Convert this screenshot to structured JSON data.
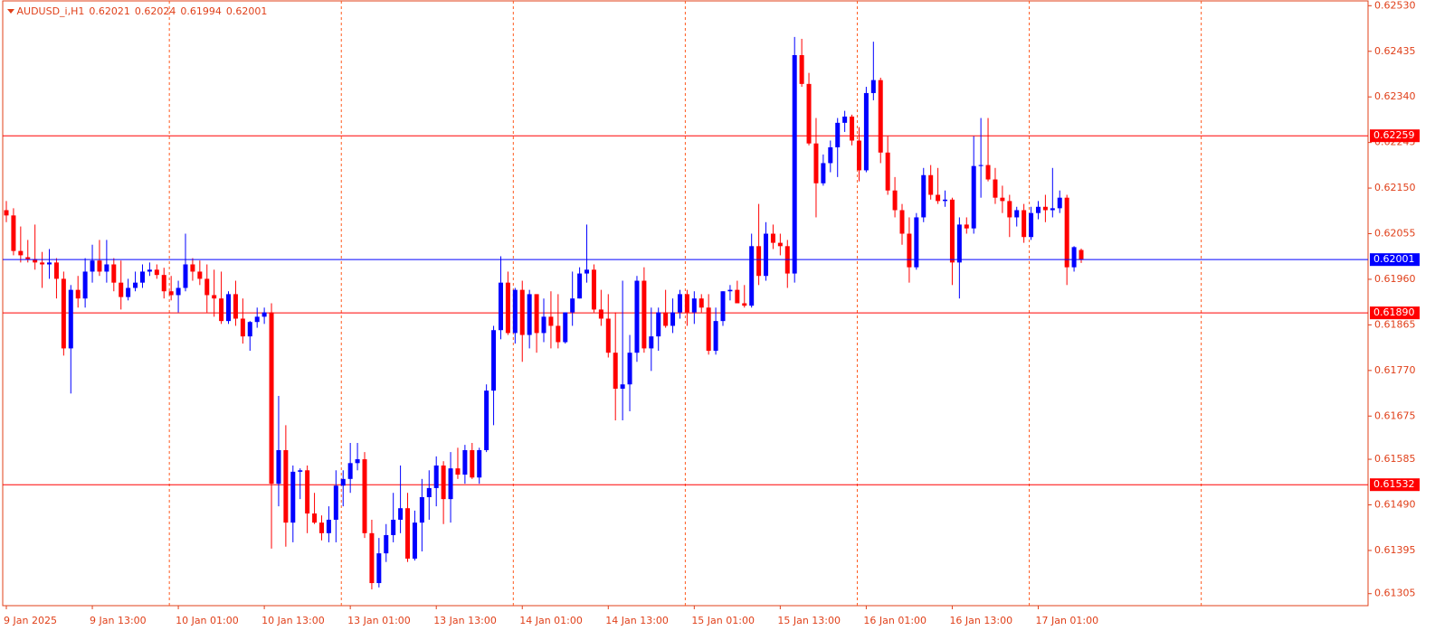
{
  "chart_data": {
    "type": "candlestick",
    "title": "AUDUSD_i,H1",
    "up_color": "#0000ff",
    "down_color": "#ff0000",
    "ylim": [
      0.6128,
      0.6254
    ],
    "yticks": [
      {
        "value": 0.6253,
        "label": "0.62530"
      },
      0.62435,
      {
        "value": 0.6234,
        "label": "0.62340"
      },
      0.62245,
      {
        "value": 0.6215,
        "label": "0.62150"
      },
      0.62055,
      {
        "value": 0.6196,
        "label": "0.61960"
      },
      0.61865,
      {
        "value": 0.6177,
        "label": "0.61770"
      },
      0.61675,
      0.61585,
      {
        "value": 0.6149,
        "label": "0.61490"
      },
      0.61395,
      0.61305
    ],
    "levels": [
      {
        "value": 0.62259,
        "color": "#ff0000"
      },
      {
        "value": 0.6189,
        "label": "0.61890",
        "color": "#ff0000"
      },
      {
        "value": 0.61532,
        "color": "#ff0000"
      }
    ],
    "categories": [
      "9 Jan 2025",
      null,
      null,
      null,
      null,
      null,
      null,
      null,
      null,
      null,
      null,
      null,
      "9 Jan 13:00",
      null,
      null,
      null,
      null,
      null,
      null,
      null,
      null,
      null,
      null,
      null,
      "10 Jan 01:00",
      null,
      null,
      null,
      null,
      null,
      null,
      null,
      null,
      null,
      null,
      null,
      "10 Jan 13:00",
      null,
      null,
      null,
      null,
      null,
      null,
      null,
      null,
      null,
      null,
      null,
      "13 Jan 01:00",
      null,
      null,
      null,
      null,
      null,
      null,
      null,
      null,
      null,
      null,
      null,
      "13 Jan 13:00",
      null,
      null,
      null,
      null,
      null,
      null,
      null,
      null,
      null,
      null,
      null,
      "14 Jan 01:00",
      null,
      null,
      null,
      null,
      null,
      null,
      null,
      null,
      null,
      null,
      null,
      "14 Jan 13:00",
      null,
      null,
      null,
      null,
      null,
      null,
      null,
      null,
      null,
      null,
      null,
      "15 Jan 01:00",
      null,
      null,
      null,
      null,
      null,
      null,
      null,
      null,
      null,
      null,
      null,
      "15 Jan 13:00",
      null,
      null,
      null,
      null,
      null,
      null,
      null,
      null,
      null,
      null,
      null,
      "16 Jan 01:00",
      null,
      null,
      null,
      null,
      null,
      null,
      null,
      null,
      null,
      null,
      null,
      "16 Jan 13:00",
      null,
      null,
      null,
      null,
      null,
      null,
      null,
      null,
      null,
      null,
      null,
      "17 Jan 01:00",
      null,
      null,
      null,
      null,
      null,
      null
    ],
    "open": [
      0.62104,
      0.62093,
      0.62019,
      0.62006,
      0.62002,
      0.61995,
      0.61991,
      0.61995,
      0.61961,
      0.61816,
      0.61938,
      0.6192,
      0.61976,
      0.61999,
      0.61976,
      0.61991,
      0.61953,
      0.61923,
      0.61942,
      0.61953,
      0.61976,
      0.6198,
      0.61969,
      0.61935,
      0.61927,
      0.61942,
      0.61991,
      0.61976,
      0.61961,
      0.61927,
      0.6192,
      0.61873,
      0.61929,
      0.61878,
      0.61841,
      0.61871,
      0.61882,
      0.61891,
      0.61534,
      0.61604,
      0.61453,
      0.61559,
      0.61562,
      0.61472,
      0.61453,
      0.61431,
      0.61459,
      0.6153,
      0.61544,
      0.61577,
      0.61585,
      0.61431,
      0.61327,
      0.61389,
      0.61427,
      0.61459,
      0.61483,
      0.61378,
      0.61453,
      0.61506,
      0.61525,
      0.61572,
      0.61502,
      0.61566,
      0.61553,
      0.61604,
      0.61547,
      0.61604,
      0.61728,
      0.61854,
      0.61953,
      0.61848,
      0.61938,
      0.61844,
      0.61929,
      0.61848,
      0.61882,
      0.61863,
      0.61829,
      0.61891,
      0.6192,
      0.61972,
      0.6198,
      0.61897,
      0.61878,
      0.61807,
      0.61732,
      0.61741,
      0.61807,
      0.61957,
      0.61816,
      0.61841,
      0.61891,
      0.61863,
      0.61891,
      0.61929,
      0.61891,
      0.6192,
      0.61901,
      0.61811,
      0.61873,
      0.61935,
      0.61938,
      0.6191,
      0.61905,
      0.62029,
      0.61967,
      0.62055,
      0.62036,
      0.62029,
      0.61972,
      0.62427,
      0.62367,
      0.62243,
      0.6216,
      0.62202,
      0.62235,
      0.62286,
      0.62299,
      0.62249,
      0.62187,
      0.62348,
      0.62375,
      0.62224,
      0.62145,
      0.62104,
      0.62055,
      0.61985,
      0.62089,
      0.62177,
      0.62136,
      0.62123,
      0.62126,
      0.61995,
      0.62074,
      0.62066,
      0.62196,
      0.62198,
      0.62168,
      0.6213,
      0.62123,
      0.62089,
      0.62104,
      0.62048,
      0.62098,
      0.62111,
      0.62104,
      0.62108,
      0.6213,
      0.61985,
      0.62021
    ],
    "high": [
      0.62123,
      0.62108,
      0.6207,
      0.62042,
      0.62074,
      0.62017,
      0.62023,
      0.62004,
      0.61976,
      0.61948,
      0.61967,
      0.62004,
      0.62032,
      0.62042,
      0.62042,
      0.62004,
      0.61999,
      0.61961,
      0.61976,
      0.61991,
      0.61995,
      0.61991,
      0.61984,
      0.61967,
      0.61957,
      0.62055,
      0.62004,
      0.61999,
      0.61991,
      0.6198,
      0.61976,
      0.61935,
      0.61957,
      0.6192,
      0.61873,
      0.61901,
      0.61901,
      0.6191,
      0.61717,
      0.61656,
      0.61572,
      0.61566,
      0.61572,
      0.61515,
      0.61468,
      0.61487,
      0.61562,
      0.61562,
      0.61619,
      0.61619,
      0.616,
      0.61459,
      0.61421,
      0.6145,
      0.61515,
      0.61572,
      0.61515,
      0.61478,
      0.61544,
      0.61562,
      0.61591,
      0.61581,
      0.616,
      0.61609,
      0.61615,
      0.61619,
      0.61609,
      0.61741,
      0.61863,
      0.62008,
      0.61976,
      0.61942,
      0.61957,
      0.61938,
      0.61929,
      0.6192,
      0.61935,
      0.61929,
      0.61891,
      0.61976,
      0.61985,
      0.62074,
      0.61991,
      0.61938,
      0.61929,
      0.61891,
      0.61957,
      0.61844,
      0.61967,
      0.61985,
      0.61901,
      0.61901,
      0.61938,
      0.6192,
      0.61938,
      0.61938,
      0.61935,
      0.61929,
      0.61929,
      0.61901,
      0.61935,
      0.61948,
      0.61957,
      0.61948,
      0.62055,
      0.62117,
      0.62079,
      0.62074,
      0.62055,
      0.62042,
      0.62465,
      0.62461,
      0.6239,
      0.62296,
      0.6222,
      0.62249,
      0.62296,
      0.62311,
      0.62303,
      0.62277,
      0.62361,
      0.62455,
      0.6238,
      0.62258,
      0.62173,
      0.62117,
      0.62089,
      0.62098,
      0.62192,
      0.62198,
      0.62192,
      0.62145,
      0.6213,
      0.62089,
      0.62089,
      0.62258,
      0.62296,
      0.62296,
      0.62192,
      0.62155,
      0.62136,
      0.62111,
      0.62117,
      0.62111,
      0.62123,
      0.62136,
      0.62192,
      0.62145,
      0.62136,
      0.62029,
      0.62024
    ],
    "low": [
      0.62079,
      0.6201,
      0.61995,
      0.61995,
      0.6198,
      0.61942,
      0.61961,
      0.6192,
      0.61801,
      0.61722,
      0.61901,
      0.61901,
      0.61953,
      0.61967,
      0.61953,
      0.61935,
      0.61897,
      0.61916,
      0.61935,
      0.61942,
      0.61967,
      0.61961,
      0.6192,
      0.61916,
      0.61891,
      0.61935,
      0.61957,
      0.61948,
      0.61891,
      0.61882,
      0.61867,
      0.61867,
      0.61863,
      0.61826,
      0.61811,
      0.61859,
      0.61867,
      0.61399,
      0.61487,
      0.61403,
      0.61412,
      0.61502,
      0.61431,
      0.6145,
      0.61416,
      0.61412,
      0.61412,
      0.61487,
      0.61515,
      0.61562,
      0.61421,
      0.61314,
      0.61318,
      0.61371,
      0.61412,
      0.61431,
      0.61371,
      0.61374,
      0.61393,
      0.61459,
      0.61487,
      0.6145,
      0.61453,
      0.61544,
      0.61534,
      0.61544,
      0.61534,
      0.616,
      0.61656,
      0.61835,
      0.61844,
      0.61826,
      0.61788,
      0.61816,
      0.61807,
      0.61829,
      0.61816,
      0.61816,
      0.61826,
      0.61863,
      0.6192,
      0.61953,
      0.61891,
      0.61863,
      0.61797,
      0.61666,
      0.61666,
      0.61685,
      0.61788,
      0.61807,
      0.61769,
      0.61811,
      0.61859,
      0.61848,
      0.61878,
      0.61863,
      0.61867,
      0.61891,
      0.61803,
      0.61803,
      0.61863,
      0.61916,
      0.6191,
      0.61901,
      0.61901,
      0.61948,
      0.61957,
      0.62023,
      0.6201,
      0.61942,
      0.61953,
      0.62361,
      0.62239,
      0.62089,
      0.62155,
      0.62183,
      0.62173,
      0.62267,
      0.62239,
      0.62164,
      0.62183,
      0.62333,
      0.62202,
      0.62136,
      0.62089,
      0.62032,
      0.61953,
      0.6198,
      0.62079,
      0.62126,
      0.62117,
      0.62111,
      0.61948,
      0.6192,
      0.62055,
      0.62055,
      0.6213,
      0.62164,
      0.62117,
      0.62098,
      0.62048,
      0.6207,
      0.62036,
      0.62042,
      0.62085,
      0.62079,
      0.62089,
      0.62098,
      0.61948,
      0.61976,
      0.61994
    ],
    "close": [
      0.62093,
      0.62019,
      0.6201,
      0.62002,
      0.61995,
      0.61991,
      0.61995,
      0.61961,
      0.61816,
      0.61938,
      0.6192,
      0.61976,
      0.61999,
      0.61976,
      0.61991,
      0.61953,
      0.61923,
      0.61942,
      0.61953,
      0.61976,
      0.6198,
      0.61969,
      0.61935,
      0.61927,
      0.61942,
      0.61991,
      0.61976,
      0.61961,
      0.61927,
      0.6192,
      0.61873,
      0.61929,
      0.61878,
      0.61841,
      0.61871,
      0.61882,
      0.61891,
      0.61534,
      0.61604,
      0.61453,
      0.61559,
      0.61562,
      0.61472,
      0.61453,
      0.61431,
      0.61459,
      0.6153,
      0.61544,
      0.61577,
      0.61585,
      0.61431,
      0.61327,
      0.61389,
      0.61427,
      0.61459,
      0.61483,
      0.61378,
      0.61453,
      0.61506,
      0.61525,
      0.61572,
      0.61502,
      0.61566,
      0.61553,
      0.61604,
      0.61547,
      0.61604,
      0.61728,
      0.61854,
      0.61953,
      0.61848,
      0.61938,
      0.61844,
      0.61929,
      0.61848,
      0.61882,
      0.61863,
      0.61829,
      0.61891,
      0.6192,
      0.61972,
      0.6198,
      0.61897,
      0.61878,
      0.61807,
      0.61732,
      0.61741,
      0.61807,
      0.61957,
      0.61816,
      0.61841,
      0.61891,
      0.61863,
      0.61891,
      0.61929,
      0.61891,
      0.6192,
      0.61901,
      0.61811,
      0.61873,
      0.61935,
      0.61938,
      0.6191,
      0.61905,
      0.62029,
      0.61967,
      0.62055,
      0.62036,
      0.62029,
      0.61972,
      0.62427,
      0.62367,
      0.62243,
      0.6216,
      0.62202,
      0.62235,
      0.62286,
      0.62299,
      0.62249,
      0.62187,
      0.62348,
      0.62375,
      0.62224,
      0.62145,
      0.62104,
      0.62055,
      0.61985,
      0.62089,
      0.62177,
      0.62136,
      0.62123,
      0.62126,
      0.61995,
      0.62074,
      0.62066,
      0.62196,
      0.62198,
      0.62168,
      0.6213,
      0.62123,
      0.62089,
      0.62104,
      0.62048,
      0.62098,
      0.62111,
      0.62104,
      0.62108,
      0.6213,
      0.61985,
      0.62027,
      0.62001
    ]
  }
}
